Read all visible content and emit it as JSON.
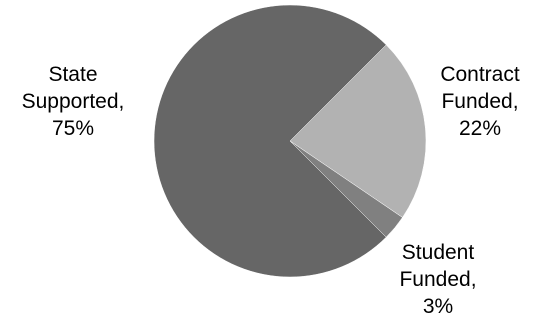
{
  "chart_data": {
    "type": "pie",
    "slices": [
      {
        "name": "Contract Funded",
        "value": 22,
        "color": "#b2b2b2",
        "label_lines": [
          "Contract",
          "Funded,",
          "22%"
        ]
      },
      {
        "name": "Student Funded",
        "value": 3,
        "color": "#808080",
        "label_lines": [
          "Student",
          "Funded,",
          "3%"
        ]
      },
      {
        "name": "State Supported",
        "value": 75,
        "color": "#666666",
        "label_lines": [
          "State",
          "Supported,",
          "75%"
        ]
      }
    ],
    "start_angle_deg": -45,
    "direction": "clockwise",
    "legend": "none"
  }
}
